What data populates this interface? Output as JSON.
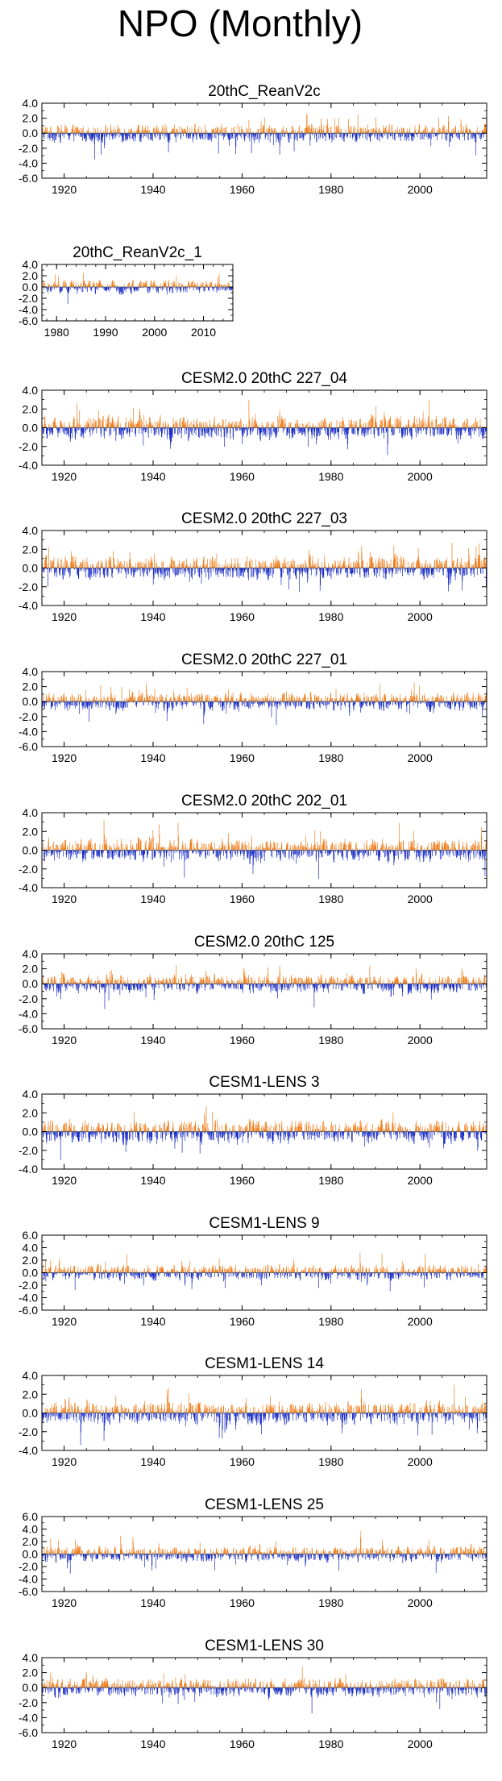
{
  "figure": {
    "title": "NPO (Monthly)"
  },
  "colors": {
    "positive": "#f07f1f",
    "negative": "#1c2fc7",
    "axis": "#000000"
  },
  "chart_data": [
    {
      "type": "bar",
      "title": "20thC_ReanV2c",
      "x_range": [
        1915,
        2015
      ],
      "xticks": [
        "1920",
        "1940",
        "1960",
        "1980",
        "2000"
      ],
      "yticks": [
        "4.0",
        "2.0",
        "0.0",
        "-2.0",
        "-4.0",
        "-6.0"
      ],
      "ylim": [
        -6,
        4
      ],
      "monthly_anomaly_range": [
        -4.5,
        2.5
      ]
    },
    {
      "type": "bar",
      "title": "20thC_ReanV2c_1",
      "x_range": [
        1977,
        2016
      ],
      "xticks": [
        "1980",
        "1990",
        "2000",
        "2010"
      ],
      "yticks": [
        "4.0",
        "2.0",
        "0.0",
        "-2.0",
        "-4.0",
        "-6.0"
      ],
      "ylim": [
        -6,
        4
      ],
      "monthly_anomaly_range": [
        -4.5,
        2.5
      ]
    },
    {
      "type": "bar",
      "title": "CESM2.0 20thC 227_04",
      "x_range": [
        1915,
        2015
      ],
      "xticks": [
        "1920",
        "1940",
        "1960",
        "1980",
        "2000"
      ],
      "yticks": [
        "4.0",
        "2.0",
        "0.0",
        "-2.0",
        "-4.0"
      ],
      "ylim": [
        -4,
        4
      ],
      "monthly_anomaly_range": [
        -3.5,
        3.0
      ]
    },
    {
      "type": "bar",
      "title": "CESM2.0 20thC 227_03",
      "x_range": [
        1915,
        2015
      ],
      "xticks": [
        "1920",
        "1940",
        "1960",
        "1980",
        "2000"
      ],
      "yticks": [
        "4.0",
        "2.0",
        "0.0",
        "-2.0",
        "-4.0"
      ],
      "ylim": [
        -4,
        4
      ],
      "monthly_anomaly_range": [
        -3.5,
        3.0
      ]
    },
    {
      "type": "bar",
      "title": "CESM2.0 20thC 227_01",
      "x_range": [
        1915,
        2015
      ],
      "xticks": [
        "1920",
        "1940",
        "1960",
        "1980",
        "2000"
      ],
      "yticks": [
        "4.0",
        "2.0",
        "0.0",
        "-2.0",
        "-4.0",
        "-6.0"
      ],
      "ylim": [
        -6,
        4
      ],
      "monthly_anomaly_range": [
        -4.0,
        2.5
      ]
    },
    {
      "type": "bar",
      "title": "CESM2.0 20thC 202_01",
      "x_range": [
        1915,
        2015
      ],
      "xticks": [
        "1920",
        "1940",
        "1960",
        "1980",
        "2000"
      ],
      "yticks": [
        "4.0",
        "2.0",
        "0.0",
        "-2.0",
        "-4.0"
      ],
      "ylim": [
        -4,
        4
      ],
      "monthly_anomaly_range": [
        -3.5,
        3.2
      ]
    },
    {
      "type": "bar",
      "title": "CESM2.0 20thC 125",
      "x_range": [
        1915,
        2015
      ],
      "xticks": [
        "1920",
        "1940",
        "1960",
        "1980",
        "2000"
      ],
      "yticks": [
        "4.0",
        "2.0",
        "0.0",
        "-2.0",
        "-4.0",
        "-6.0"
      ],
      "ylim": [
        -6,
        4
      ],
      "monthly_anomaly_range": [
        -4.5,
        2.5
      ]
    },
    {
      "type": "bar",
      "title": "CESM1-LENS 3",
      "x_range": [
        1915,
        2015
      ],
      "xticks": [
        "1920",
        "1940",
        "1960",
        "1980",
        "2000"
      ],
      "yticks": [
        "4.0",
        "2.0",
        "0.0",
        "-2.0",
        "-4.0"
      ],
      "ylim": [
        -4,
        4
      ],
      "monthly_anomaly_range": [
        -3.5,
        3.2
      ]
    },
    {
      "type": "bar",
      "title": "CESM1-LENS 9",
      "x_range": [
        1915,
        2015
      ],
      "xticks": [
        "1920",
        "1940",
        "1960",
        "1980",
        "2000"
      ],
      "yticks": [
        "6.0",
        "4.0",
        "2.0",
        "0.0",
        "-2.0",
        "-4.0",
        "-6.0"
      ],
      "ylim": [
        -6,
        6
      ],
      "monthly_anomaly_range": [
        -4.0,
        4.0
      ]
    },
    {
      "type": "bar",
      "title": "CESM1-LENS 14",
      "x_range": [
        1915,
        2015
      ],
      "xticks": [
        "1920",
        "1940",
        "1960",
        "1980",
        "2000"
      ],
      "yticks": [
        "4.0",
        "2.0",
        "0.0",
        "-2.0",
        "-4.0"
      ],
      "ylim": [
        -4,
        4
      ],
      "monthly_anomaly_range": [
        -3.5,
        3.5
      ]
    },
    {
      "type": "bar",
      "title": "CESM1-LENS 25",
      "x_range": [
        1915,
        2015
      ],
      "xticks": [
        "1920",
        "1940",
        "1960",
        "1980",
        "2000"
      ],
      "yticks": [
        "6.0",
        "4.0",
        "2.0",
        "0.0",
        "-2.0",
        "-4.0",
        "-6.0"
      ],
      "ylim": [
        -6,
        6
      ],
      "monthly_anomaly_range": [
        -4.0,
        4.0
      ]
    },
    {
      "type": "bar",
      "title": "CESM1-LENS 30",
      "x_range": [
        1915,
        2015
      ],
      "xticks": [
        "1920",
        "1940",
        "1960",
        "1980",
        "2000"
      ],
      "yticks": [
        "4.0",
        "2.0",
        "0.0",
        "-2.0",
        "-4.0",
        "-6.0"
      ],
      "ylim": [
        -6,
        4
      ],
      "monthly_anomaly_range": [
        -4.5,
        2.8
      ]
    }
  ]
}
